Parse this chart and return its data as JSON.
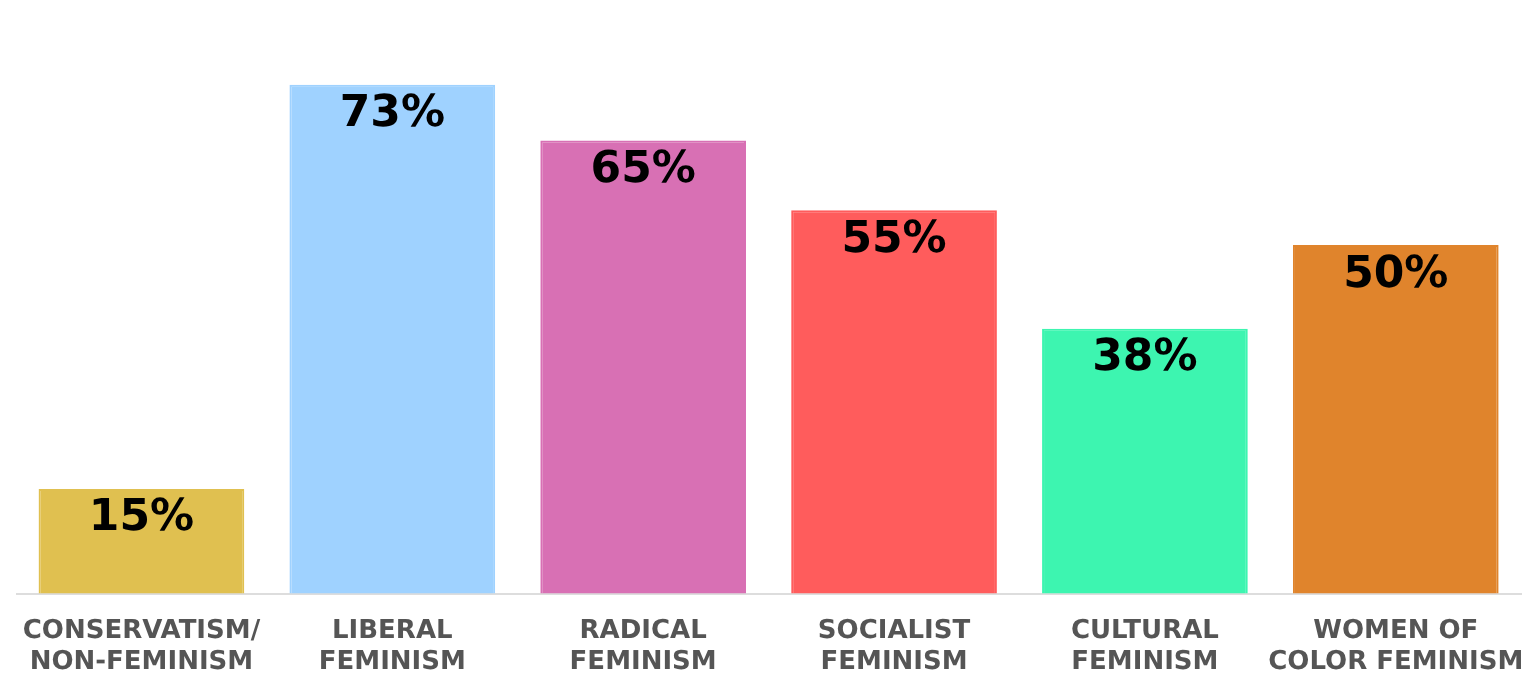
{
  "chart_data": {
    "type": "bar",
    "categories": [
      "CONSERVATISM/\nNON-FEMINISM",
      "LIBERAL\nFEMINISM",
      "RADICAL\nFEMINISM",
      "SOCIALIST\nFEMINISM",
      "CULTURAL\nFEMINISM",
      "WOMEN OF\nCOLOR FEMINISM"
    ],
    "values": [
      15,
      73,
      65,
      55,
      38,
      50
    ],
    "value_labels": [
      "15%",
      "73%",
      "65%",
      "55%",
      "38%",
      "50%"
    ],
    "colors": [
      "#e0c050",
      "#9fd2ff",
      "#d870b4",
      "#ff5c5c",
      "#3df5b0",
      "#e0842c"
    ],
    "legend": false,
    "tick_labels": "x"
  }
}
